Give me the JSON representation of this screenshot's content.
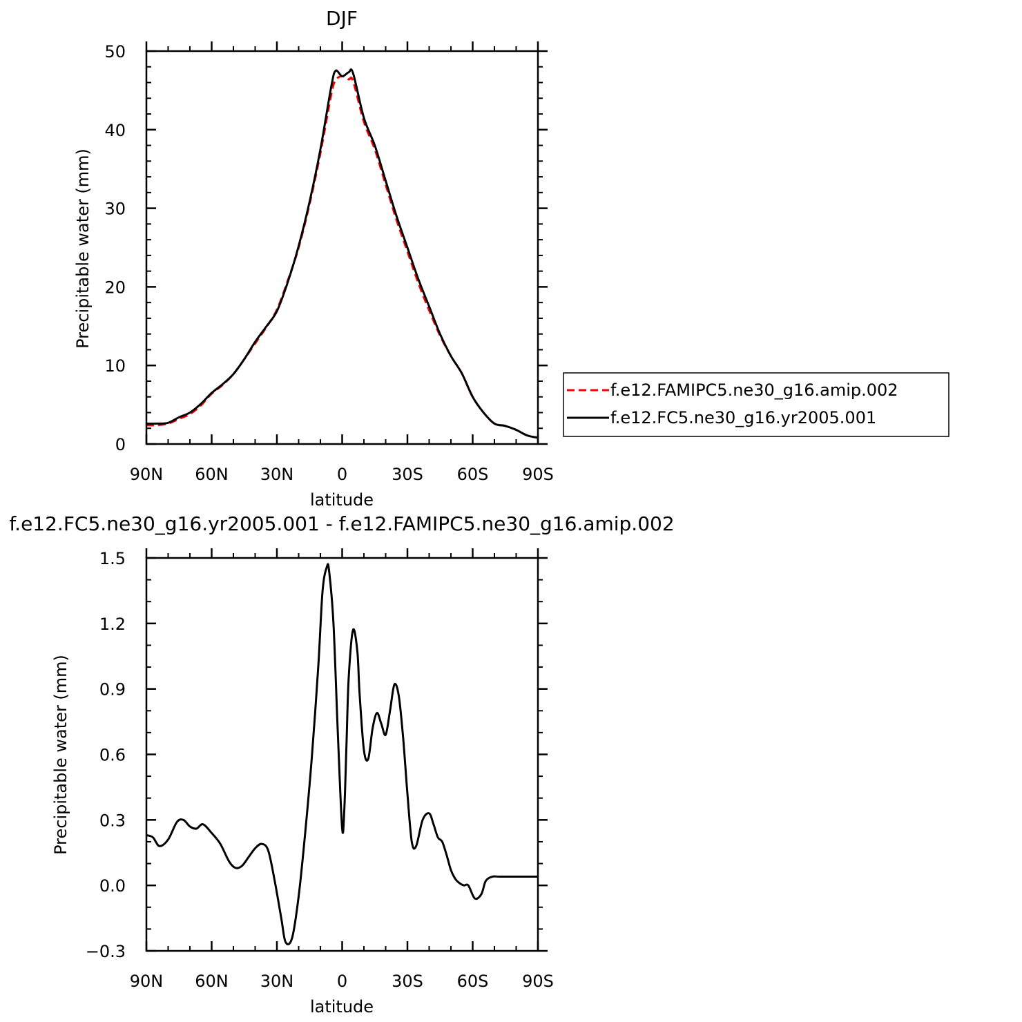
{
  "chart_data": [
    {
      "type": "line",
      "title": "DJF",
      "xlabel": "latitude",
      "ylabel": "Precipitable water (mm)",
      "xlim": [
        90,
        -90
      ],
      "ylim": [
        0,
        50
      ],
      "x_ticks": [
        90,
        60,
        30,
        0,
        -30,
        -60,
        -90
      ],
      "x_tick_labels": [
        "90N",
        "60N",
        "30N",
        "0",
        "30S",
        "60S",
        "90S"
      ],
      "y_ticks": [
        0,
        10,
        20,
        30,
        40,
        50
      ],
      "y_tick_labels": [
        "0",
        "10",
        "20",
        "30",
        "40",
        "50"
      ],
      "legend": "right",
      "series": [
        {
          "name": "f.e12.FAMIPC5.ne30_g16.amip.002",
          "color": "#ff0000",
          "style": "dashed",
          "x": [
            90,
            85,
            80,
            75,
            70,
            65,
            60,
            55,
            50,
            45,
            40,
            35,
            30,
            25,
            20,
            15,
            10,
            5,
            3,
            0,
            -3,
            -5,
            -10,
            -15,
            -20,
            -25,
            -30,
            -35,
            -40,
            -45,
            -50,
            -55,
            -60,
            -65,
            -70,
            -75,
            -80,
            -85,
            -90
          ],
          "y": [
            2.4,
            2.4,
            2.6,
            3.2,
            3.8,
            4.9,
            6.4,
            7.5,
            8.9,
            10.8,
            12.8,
            14.8,
            17.1,
            20.8,
            25.0,
            30.5,
            37.0,
            44.5,
            46.3,
            46.8,
            46.4,
            46.2,
            41.0,
            37.5,
            33.0,
            28.5,
            24.5,
            20.5,
            17.0,
            13.8,
            11.2,
            9.0,
            6.0,
            4.0,
            2.6,
            2.3,
            1.8,
            1.1,
            0.8
          ]
        },
        {
          "name": "f.e12.FC5.ne30_g16.yr2005.001",
          "color": "#000000",
          "style": "solid",
          "x": [
            90,
            85,
            80,
            75,
            70,
            65,
            60,
            55,
            50,
            45,
            40,
            35,
            30,
            25,
            20,
            15,
            10,
            5,
            3,
            0,
            -3,
            -5,
            -10,
            -15,
            -20,
            -25,
            -30,
            -35,
            -40,
            -45,
            -50,
            -55,
            -60,
            -65,
            -70,
            -75,
            -80,
            -85,
            -90
          ],
          "y": [
            2.6,
            2.6,
            2.7,
            3.4,
            4.0,
            5.1,
            6.5,
            7.6,
            8.9,
            10.8,
            13.0,
            14.9,
            16.9,
            20.6,
            25.2,
            30.8,
            37.5,
            45.5,
            47.5,
            46.8,
            47.3,
            47.2,
            41.5,
            38.0,
            33.5,
            29.0,
            25.0,
            21.0,
            17.5,
            14.0,
            11.2,
            9.0,
            6.0,
            4.0,
            2.6,
            2.3,
            1.8,
            1.1,
            0.8
          ]
        }
      ]
    },
    {
      "type": "line",
      "title": "f.e12.FC5.ne30_g16.yr2005.001 - f.e12.FAMIPC5.ne30_g16.amip.002",
      "xlabel": "latitude",
      "ylabel": "Precipitable water (mm)",
      "xlim": [
        90,
        -90
      ],
      "ylim": [
        -0.3,
        1.5
      ],
      "x_ticks": [
        90,
        60,
        30,
        0,
        -30,
        -60,
        -90
      ],
      "x_tick_labels": [
        "90N",
        "60N",
        "30N",
        "0",
        "30S",
        "60S",
        "90S"
      ],
      "y_ticks": [
        -0.3,
        0.0,
        0.3,
        0.6,
        0.9,
        1.2,
        1.5
      ],
      "y_tick_labels": [
        "−0.3",
        "0.0",
        "0.3",
        "0.6",
        "0.9",
        "1.2",
        "1.5"
      ],
      "series": [
        {
          "color": "#000000",
          "style": "solid",
          "x": [
            90,
            87,
            84,
            80,
            76,
            73,
            70,
            67,
            64,
            60,
            56,
            52,
            49,
            46,
            43,
            40,
            37,
            34,
            31,
            28,
            26,
            23,
            20,
            17,
            14,
            11,
            9,
            7,
            6,
            4,
            2,
            0,
            -1,
            -2,
            -3,
            -5,
            -7,
            -8,
            -10,
            -12,
            -14,
            -16,
            -18,
            -20,
            -22,
            -24,
            -26,
            -28,
            -30,
            -32,
            -34,
            -37,
            -40,
            -42,
            -44,
            -46,
            -48,
            -50,
            -52,
            -54,
            -56,
            -58,
            -61,
            -64,
            -66,
            -69,
            -72,
            -74,
            -77,
            -79,
            -81,
            -83,
            -85,
            -87,
            -90
          ],
          "y": [
            0.23,
            0.22,
            0.18,
            0.21,
            0.29,
            0.3,
            0.27,
            0.26,
            0.28,
            0.24,
            0.19,
            0.11,
            0.08,
            0.09,
            0.13,
            0.17,
            0.19,
            0.16,
            0.02,
            -0.15,
            -0.26,
            -0.24,
            -0.05,
            0.24,
            0.58,
            1.0,
            1.35,
            1.46,
            1.44,
            1.2,
            0.7,
            0.26,
            0.35,
            0.65,
            0.95,
            1.17,
            1.07,
            0.88,
            0.62,
            0.58,
            0.72,
            0.79,
            0.74,
            0.69,
            0.8,
            0.92,
            0.87,
            0.68,
            0.42,
            0.2,
            0.18,
            0.3,
            0.33,
            0.28,
            0.22,
            0.2,
            0.14,
            0.07,
            0.03,
            0.01,
            0.0,
            0.0,
            -0.06,
            -0.04,
            0.02,
            0.04,
            0.04,
            0.04,
            0.04,
            0.04,
            0.04,
            0.04,
            0.04,
            0.04,
            0.04
          ]
        }
      ]
    }
  ],
  "legend": {
    "entries": [
      "f.e12.FAMIPC5.ne30_g16.amip.002",
      "f.e12.FC5.ne30_g16.yr2005.001"
    ],
    "colors": [
      "#ff0000",
      "#000000"
    ]
  }
}
